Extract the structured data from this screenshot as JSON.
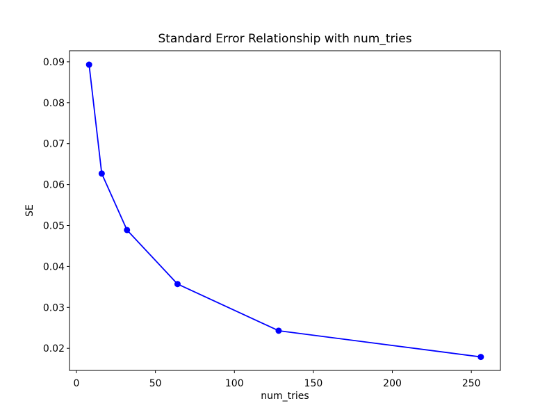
{
  "window": {
    "background": "#ffffff"
  },
  "chart_data": {
    "type": "line",
    "title": "Standard Error Relationship with num_tries",
    "xlabel": "num_tries",
    "ylabel": "SE",
    "x": [
      8,
      16,
      32,
      64,
      128,
      256
    ],
    "y": [
      0.0893,
      0.0627,
      0.0489,
      0.0357,
      0.0243,
      0.0179
    ],
    "xlim": [
      -4.4,
      268.4
    ],
    "ylim": [
      0.0146,
      0.0927
    ],
    "xticks": [
      0,
      50,
      100,
      150,
      200,
      250
    ],
    "xtick_labels": [
      "0",
      "50",
      "100",
      "150",
      "200",
      "250"
    ],
    "yticks": [
      0.02,
      0.03,
      0.04,
      0.05,
      0.06,
      0.07,
      0.08,
      0.09
    ],
    "ytick_labels": [
      "0.02",
      "0.03",
      "0.04",
      "0.05",
      "0.06",
      "0.07",
      "0.08",
      "0.09"
    ],
    "grid": false,
    "legend": null,
    "line_color": "#0000ff",
    "marker": "circle",
    "marker_color": "#0000ff",
    "text_color": "#000000",
    "spine_color": "#000000"
  }
}
